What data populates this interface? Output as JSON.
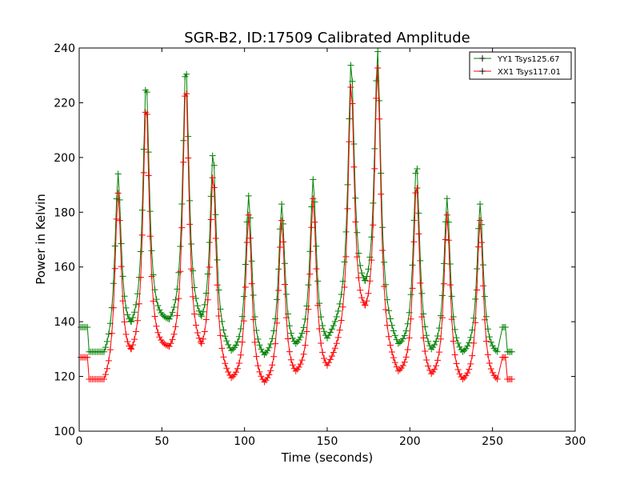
{
  "chart_data": {
    "type": "line",
    "title": "SGR-B2, ID:17509 Calibrated Amplitude",
    "xlabel": "Time (seconds)",
    "ylabel": "Power in Kelvin",
    "xlim": [
      0,
      300
    ],
    "ylim": [
      100,
      240
    ],
    "xticks": [
      0,
      50,
      100,
      150,
      200,
      250,
      300
    ],
    "yticks": [
      100,
      120,
      140,
      160,
      180,
      200,
      220,
      240
    ],
    "grid": false,
    "legend_position": "top-right",
    "series": [
      {
        "name": "YY1 Tsys125.67",
        "color": "#008000",
        "baseline_segments": [
          {
            "x": [
              1,
              5
            ],
            "y": 138
          },
          {
            "x": [
              6,
              14
            ],
            "y": 129
          },
          {
            "x": [
              256,
              258
            ],
            "y": 138
          },
          {
            "x": [
              259,
              262
            ],
            "y": 129
          }
        ],
        "peaks": [
          {
            "x": 23.5,
            "y": 194
          },
          {
            "x": 40.5,
            "y": 228
          },
          {
            "x": 64.5,
            "y": 234
          },
          {
            "x": 81,
            "y": 202
          },
          {
            "x": 102.5,
            "y": 186
          },
          {
            "x": 122.5,
            "y": 183
          },
          {
            "x": 141.5,
            "y": 192
          },
          {
            "x": 164.5,
            "y": 235
          },
          {
            "x": 180.5,
            "y": 239
          },
          {
            "x": 204,
            "y": 198
          },
          {
            "x": 222.5,
            "y": 185
          },
          {
            "x": 242.5,
            "y": 183
          }
        ],
        "troughs": [
          {
            "x": 15,
            "y": 129
          },
          {
            "x": 31.5,
            "y": 140
          },
          {
            "x": 54.5,
            "y": 141
          },
          {
            "x": 74,
            "y": 142
          },
          {
            "x": 92,
            "y": 129.5
          },
          {
            "x": 112,
            "y": 128
          },
          {
            "x": 131,
            "y": 132
          },
          {
            "x": 150,
            "y": 134
          },
          {
            "x": 173,
            "y": 155
          },
          {
            "x": 193,
            "y": 132
          },
          {
            "x": 213,
            "y": 130
          },
          {
            "x": 232,
            "y": 129
          },
          {
            "x": 253,
            "y": 129
          }
        ]
      },
      {
        "name": "XX1 Tsys117.01",
        "color": "#ff0000",
        "baseline_segments": [
          {
            "x": [
              1,
              5
            ],
            "y": 127
          },
          {
            "x": [
              6,
              14
            ],
            "y": 119
          },
          {
            "x": [
              256,
              258
            ],
            "y": 127
          },
          {
            "x": [
              259,
              262
            ],
            "y": 119
          }
        ],
        "peaks": [
          {
            "x": 23.5,
            "y": 187
          },
          {
            "x": 40.5,
            "y": 220
          },
          {
            "x": 64.5,
            "y": 227
          },
          {
            "x": 81,
            "y": 194
          },
          {
            "x": 102.5,
            "y": 179
          },
          {
            "x": 122.5,
            "y": 177
          },
          {
            "x": 141.5,
            "y": 185
          },
          {
            "x": 164.5,
            "y": 227
          },
          {
            "x": 180.5,
            "y": 233
          },
          {
            "x": 204,
            "y": 191
          },
          {
            "x": 222.5,
            "y": 179
          },
          {
            "x": 242.5,
            "y": 177
          }
        ],
        "troughs": [
          {
            "x": 15,
            "y": 119
          },
          {
            "x": 31.5,
            "y": 130
          },
          {
            "x": 54.5,
            "y": 131
          },
          {
            "x": 74,
            "y": 132
          },
          {
            "x": 92,
            "y": 119.5
          },
          {
            "x": 112,
            "y": 118
          },
          {
            "x": 131,
            "y": 122
          },
          {
            "x": 150,
            "y": 124
          },
          {
            "x": 173,
            "y": 146
          },
          {
            "x": 193,
            "y": 122
          },
          {
            "x": 213,
            "y": 121
          },
          {
            "x": 232,
            "y": 119
          },
          {
            "x": 253,
            "y": 119
          }
        ]
      }
    ]
  }
}
